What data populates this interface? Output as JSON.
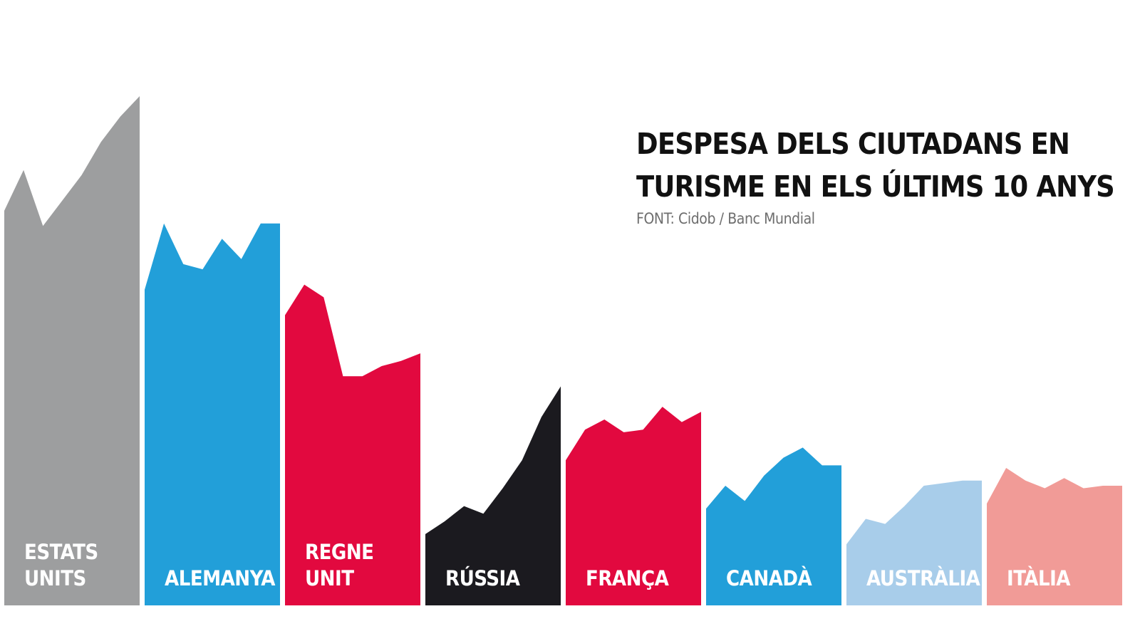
{
  "chart_data": {
    "type": "area",
    "title_lines": [
      "DESPESA DELS CIUTADANS EN",
      "TURISME EN ELS ÚLTIMS 10 ANYS"
    ],
    "source": "FONT: Cidob / Banc Mundial",
    "xlabel": "",
    "ylabel": "",
    "legend": "none",
    "grid": false,
    "ylim": [
      0,
      100
    ],
    "points_per_series": 8,
    "series": [
      {
        "name": "ESTATS UNITS",
        "label_lines": [
          "ESTATS",
          "UNITS"
        ],
        "color": "#9d9e9f",
        "values": [
          77.5,
          85.5,
          74.5,
          79.5,
          84.5,
          91,
          96,
          100
        ]
      },
      {
        "name": "ALEMANYA",
        "label_lines": [
          "ALEMANYA"
        ],
        "color": "#229fd9",
        "values": [
          62,
          75,
          67,
          66,
          72,
          68,
          75,
          75
        ]
      },
      {
        "name": "REGNE UNIT",
        "label_lines": [
          "REGNE",
          "UNIT"
        ],
        "color": "#e2093f",
        "values": [
          57,
          63,
          60.5,
          45,
          45,
          47,
          48,
          49.5
        ]
      },
      {
        "name": "RÚSSIA",
        "label_lines": [
          "RÚSSIA"
        ],
        "color": "#1b1a1f",
        "values": [
          14,
          16.5,
          19.5,
          18,
          23,
          28.5,
          37,
          43
        ]
      },
      {
        "name": "FRANÇA",
        "label_lines": [
          "FRANÇA"
        ],
        "color": "#e2093f",
        "values": [
          28.5,
          34.5,
          36.5,
          34,
          34.5,
          39,
          36,
          38
        ]
      },
      {
        "name": "CANADÀ",
        "label_lines": [
          "CANADÀ"
        ],
        "color": "#229fd9",
        "values": [
          19,
          23.5,
          20.5,
          25.5,
          29,
          31,
          27.5,
          27.5
        ]
      },
      {
        "name": "AUSTRÀLIA",
        "label_lines": [
          "AUSTRÀLIA"
        ],
        "color": "#a8cdea",
        "values": [
          12,
          17,
          16,
          19.5,
          23.5,
          24,
          24.5,
          24.5
        ]
      },
      {
        "name": "ITÀLIA",
        "label_lines": [
          "ITÀLIA"
        ],
        "color": "#f19b97",
        "values": [
          20,
          27,
          24.5,
          23,
          25,
          23,
          23.5,
          23.5
        ]
      }
    ]
  }
}
